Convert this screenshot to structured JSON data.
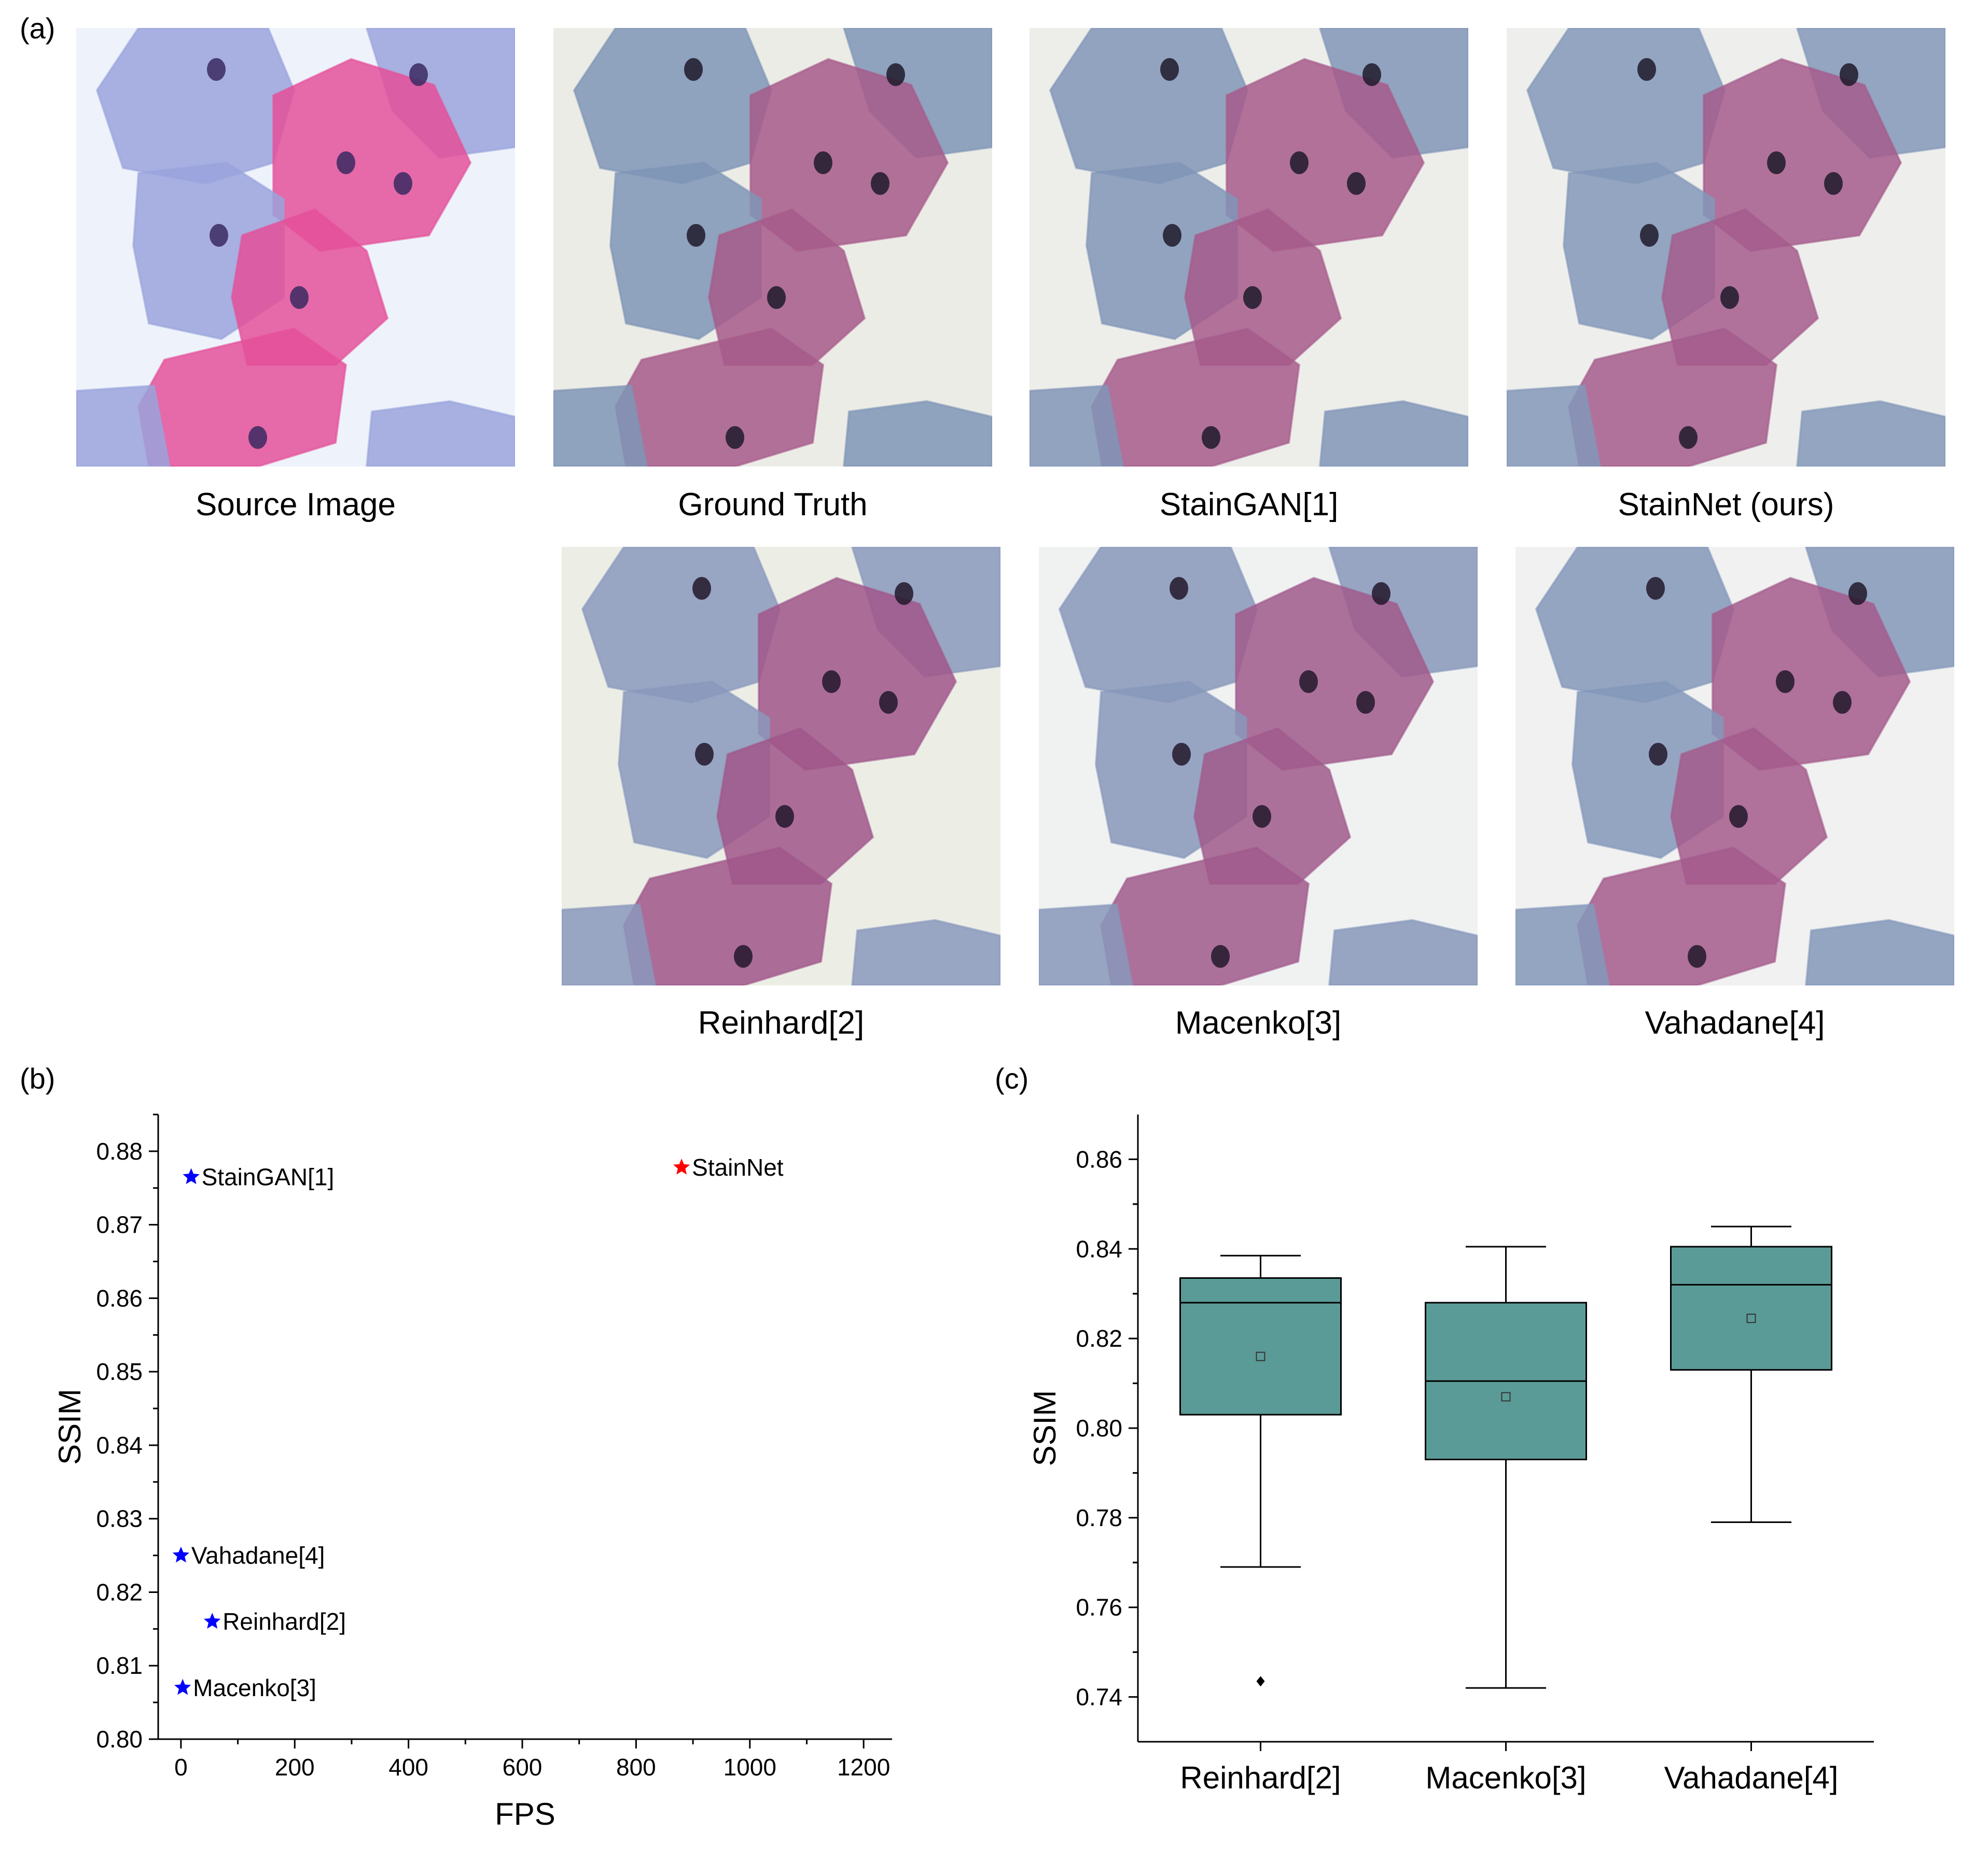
{
  "panels": {
    "a": "(a)",
    "b": "(b)",
    "c": "(c)"
  },
  "images": [
    {
      "caption": "Source Image",
      "style": "source",
      "palette": {
        "bg": "#eef3fb",
        "blue": "#9aa3dc",
        "pink": "#e4509a",
        "nucleus": "#3a2a62"
      }
    },
    {
      "caption": "Ground Truth",
      "style": "normalized",
      "palette": {
        "bg": "#ecece6",
        "blue": "#7f95b6",
        "pink": "#a75a8a",
        "nucleus": "#1e1a2a"
      }
    },
    {
      "caption": "StainGAN[1]",
      "style": "normalized",
      "palette": {
        "bg": "#edeeea",
        "blue": "#8095b7",
        "pink": "#a65b8b",
        "nucleus": "#1e1a2a"
      }
    },
    {
      "caption": "StainNet (ours)",
      "style": "normalized",
      "palette": {
        "bg": "#eeefec",
        "blue": "#8398b9",
        "pink": "#a45c8c",
        "nucleus": "#1e1a2a"
      }
    },
    {
      "caption": "Reinhard[2]",
      "style": "normalized",
      "palette": {
        "bg": "#eceee6",
        "blue": "#8a98bc",
        "pink": "#a0568a",
        "nucleus": "#22182c"
      }
    },
    {
      "caption": "Macenko[3]",
      "style": "normalized",
      "palette": {
        "bg": "#f0f2f2",
        "blue": "#8798bb",
        "pink": "#a05a8c",
        "nucleus": "#22182c"
      }
    },
    {
      "caption": "Vahadane[4]",
      "style": "normalized",
      "palette": {
        "bg": "#f0f1f0",
        "blue": "#8498ba",
        "pink": "#a55b8c",
        "nucleus": "#22182c"
      }
    }
  ],
  "chart_data": [
    {
      "type": "scatter",
      "xlabel": "FPS",
      "ylabel": "SSIM",
      "xlim": [
        -40,
        1250
      ],
      "ylim": [
        0.8,
        0.885
      ],
      "xticks": [
        0,
        200,
        400,
        600,
        800,
        1000,
        1200
      ],
      "yticks": [
        0.8,
        0.81,
        0.82,
        0.83,
        0.84,
        0.85,
        0.86,
        0.87,
        0.88
      ],
      "marker": "star",
      "points": [
        {
          "label": "StainGAN[1]",
          "x": 18,
          "y": 0.8765,
          "color": "#0000ff"
        },
        {
          "label": "StainNet",
          "x": 880,
          "y": 0.8778,
          "color": "#ff0000"
        },
        {
          "label": "Vahadane[4]",
          "x": 0,
          "y": 0.825,
          "color": "#0000ff"
        },
        {
          "label": "Reinhard[2]",
          "x": 55,
          "y": 0.816,
          "color": "#0000ff"
        },
        {
          "label": "Macenko[3]",
          "x": 3,
          "y": 0.807,
          "color": "#0000ff"
        }
      ]
    },
    {
      "type": "box",
      "ylabel": "SSIM",
      "ylim": [
        0.73,
        0.87
      ],
      "yticks": [
        0.74,
        0.76,
        0.78,
        0.8,
        0.82,
        0.84,
        0.86
      ],
      "categories": [
        "Reinhard[2]",
        "Macenko[3]",
        "Vahadane[4]"
      ],
      "box_color": "#5b9b97",
      "boxes": [
        {
          "whisker_low": 0.769,
          "q1": 0.803,
          "median": 0.828,
          "q3": 0.8335,
          "whisker_high": 0.8385,
          "mean": 0.816,
          "outliers": [
            0.7435
          ]
        },
        {
          "whisker_low": 0.742,
          "q1": 0.793,
          "median": 0.8105,
          "q3": 0.828,
          "whisker_high": 0.8405,
          "mean": 0.807,
          "outliers": []
        },
        {
          "whisker_low": 0.779,
          "q1": 0.813,
          "median": 0.832,
          "q3": 0.8405,
          "whisker_high": 0.845,
          "mean": 0.8245,
          "outliers": []
        }
      ]
    }
  ]
}
